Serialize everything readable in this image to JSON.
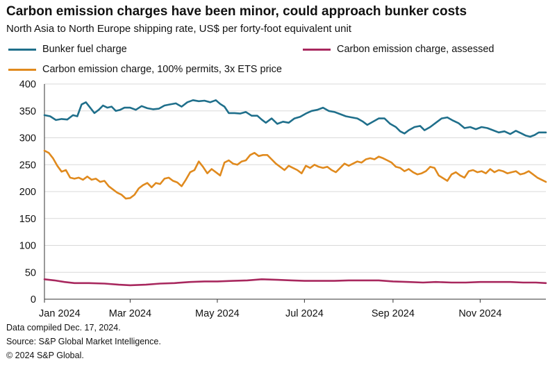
{
  "header": {
    "title": "Carbon emission charges have been minor, could approach bunker costs",
    "subtitle": "North Asia to North Europe shipping rate, US$ per forty-foot equivalent unit"
  },
  "footer": {
    "line1": "Data compiled Dec. 17, 2024.",
    "line2": "Source: S&P Global Market Intelligence.",
    "line3": "© 2024 S&P Global."
  },
  "chart_data": {
    "type": "line",
    "title": "Carbon emission charges have been minor, could approach bunker costs",
    "subtitle": "North Asia to North Europe shipping rate, US$ per forty-foot equivalent unit",
    "xlabel": "",
    "ylabel": "",
    "ylim": [
      0,
      400
    ],
    "yticks": [
      0,
      50,
      100,
      150,
      200,
      250,
      300,
      350,
      400
    ],
    "xlim": [
      "2024-01-01",
      "2024-12-17"
    ],
    "xticks": [
      {
        "date": "2024-01-01",
        "label": "Jan 2024"
      },
      {
        "date": "2024-03-01",
        "label": "Mar 2024"
      },
      {
        "date": "2024-05-01",
        "label": "May 2024"
      },
      {
        "date": "2024-07-01",
        "label": "Jul 2024"
      },
      {
        "date": "2024-09-01",
        "label": "Sep 2024"
      },
      {
        "date": "2024-11-01",
        "label": "Nov 2024"
      }
    ],
    "grid": "horizontal",
    "legend_position": "top",
    "series": [
      {
        "name": "Bunker fuel charge",
        "color": "#1f6f8b",
        "points": [
          [
            "2024-01-01",
            342
          ],
          [
            "2024-01-05",
            340
          ],
          [
            "2024-01-09",
            333
          ],
          [
            "2024-01-13",
            335
          ],
          [
            "2024-01-17",
            334
          ],
          [
            "2024-01-21",
            342
          ],
          [
            "2024-01-24",
            340
          ],
          [
            "2024-01-27",
            362
          ],
          [
            "2024-01-30",
            366
          ],
          [
            "2024-02-02",
            356
          ],
          [
            "2024-02-05",
            346
          ],
          [
            "2024-02-08",
            352
          ],
          [
            "2024-02-11",
            360
          ],
          [
            "2024-02-14",
            356
          ],
          [
            "2024-02-17",
            358
          ],
          [
            "2024-02-20",
            350
          ],
          [
            "2024-02-23",
            352
          ],
          [
            "2024-02-26",
            356
          ],
          [
            "2024-03-01",
            356
          ],
          [
            "2024-03-05",
            352
          ],
          [
            "2024-03-09",
            359
          ],
          [
            "2024-03-13",
            355
          ],
          [
            "2024-03-17",
            353
          ],
          [
            "2024-03-21",
            354
          ],
          [
            "2024-03-25",
            360
          ],
          [
            "2024-03-29",
            362
          ],
          [
            "2024-04-02",
            364
          ],
          [
            "2024-04-06",
            358
          ],
          [
            "2024-04-10",
            366
          ],
          [
            "2024-04-14",
            370
          ],
          [
            "2024-04-18",
            368
          ],
          [
            "2024-04-22",
            369
          ],
          [
            "2024-04-26",
            366
          ],
          [
            "2024-04-30",
            370
          ],
          [
            "2024-05-03",
            363
          ],
          [
            "2024-05-06",
            358
          ],
          [
            "2024-05-09",
            346
          ],
          [
            "2024-05-13",
            346
          ],
          [
            "2024-05-17",
            345
          ],
          [
            "2024-05-21",
            348
          ],
          [
            "2024-05-25",
            341
          ],
          [
            "2024-05-29",
            341
          ],
          [
            "2024-06-01",
            334
          ],
          [
            "2024-06-04",
            328
          ],
          [
            "2024-06-08",
            336
          ],
          [
            "2024-06-12",
            326
          ],
          [
            "2024-06-16",
            330
          ],
          [
            "2024-06-20",
            328
          ],
          [
            "2024-06-24",
            336
          ],
          [
            "2024-06-28",
            339
          ],
          [
            "2024-07-02",
            345
          ],
          [
            "2024-07-06",
            350
          ],
          [
            "2024-07-10",
            352
          ],
          [
            "2024-07-14",
            356
          ],
          [
            "2024-07-18",
            350
          ],
          [
            "2024-07-22",
            348
          ],
          [
            "2024-07-26",
            344
          ],
          [
            "2024-07-30",
            340
          ],
          [
            "2024-08-03",
            338
          ],
          [
            "2024-08-07",
            336
          ],
          [
            "2024-08-11",
            330
          ],
          [
            "2024-08-14",
            324
          ],
          [
            "2024-08-18",
            330
          ],
          [
            "2024-08-22",
            336
          ],
          [
            "2024-08-26",
            336
          ],
          [
            "2024-08-30",
            326
          ],
          [
            "2024-09-03",
            320
          ],
          [
            "2024-09-06",
            312
          ],
          [
            "2024-09-09",
            308
          ],
          [
            "2024-09-12",
            314
          ],
          [
            "2024-09-16",
            320
          ],
          [
            "2024-09-20",
            322
          ],
          [
            "2024-09-23",
            314
          ],
          [
            "2024-09-27",
            320
          ],
          [
            "2024-10-01",
            328
          ],
          [
            "2024-10-05",
            336
          ],
          [
            "2024-10-09",
            338
          ],
          [
            "2024-10-13",
            332
          ],
          [
            "2024-10-17",
            327
          ],
          [
            "2024-10-21",
            318
          ],
          [
            "2024-10-25",
            320
          ],
          [
            "2024-10-29",
            316
          ],
          [
            "2024-11-02",
            320
          ],
          [
            "2024-11-06",
            318
          ],
          [
            "2024-11-10",
            314
          ],
          [
            "2024-11-14",
            310
          ],
          [
            "2024-11-18",
            312
          ],
          [
            "2024-11-22",
            307
          ],
          [
            "2024-11-26",
            313
          ],
          [
            "2024-11-30",
            308
          ],
          [
            "2024-12-03",
            304
          ],
          [
            "2024-12-06",
            302
          ],
          [
            "2024-12-09",
            305
          ],
          [
            "2024-12-12",
            310
          ],
          [
            "2024-12-17",
            310
          ]
        ]
      },
      {
        "name": "Carbon emission charge, assessed",
        "color": "#a8285e",
        "points": [
          [
            "2024-01-01",
            37
          ],
          [
            "2024-01-08",
            35
          ],
          [
            "2024-01-15",
            32
          ],
          [
            "2024-01-22",
            30
          ],
          [
            "2024-02-01",
            30
          ],
          [
            "2024-02-12",
            29
          ],
          [
            "2024-02-22",
            27
          ],
          [
            "2024-03-01",
            26
          ],
          [
            "2024-03-12",
            27
          ],
          [
            "2024-03-22",
            29
          ],
          [
            "2024-04-01",
            30
          ],
          [
            "2024-04-12",
            32
          ],
          [
            "2024-04-22",
            33
          ],
          [
            "2024-05-01",
            33
          ],
          [
            "2024-05-12",
            34
          ],
          [
            "2024-05-22",
            35
          ],
          [
            "2024-06-01",
            37
          ],
          [
            "2024-06-12",
            36
          ],
          [
            "2024-06-22",
            35
          ],
          [
            "2024-07-01",
            34
          ],
          [
            "2024-07-12",
            34
          ],
          [
            "2024-07-22",
            34
          ],
          [
            "2024-08-01",
            35
          ],
          [
            "2024-08-12",
            35
          ],
          [
            "2024-08-22",
            35
          ],
          [
            "2024-09-01",
            33
          ],
          [
            "2024-09-12",
            32
          ],
          [
            "2024-09-22",
            31
          ],
          [
            "2024-10-01",
            32
          ],
          [
            "2024-10-12",
            31
          ],
          [
            "2024-10-22",
            31
          ],
          [
            "2024-11-01",
            32
          ],
          [
            "2024-11-12",
            32
          ],
          [
            "2024-11-22",
            32
          ],
          [
            "2024-12-01",
            31
          ],
          [
            "2024-12-10",
            31
          ],
          [
            "2024-12-17",
            30
          ]
        ]
      },
      {
        "name": "Carbon emission charge, 100% permits, 3x ETS price",
        "color": "#e08a1e",
        "points": [
          [
            "2024-01-01",
            276
          ],
          [
            "2024-01-04",
            272
          ],
          [
            "2024-01-07",
            262
          ],
          [
            "2024-01-10",
            248
          ],
          [
            "2024-01-13",
            237
          ],
          [
            "2024-01-16",
            240
          ],
          [
            "2024-01-19",
            226
          ],
          [
            "2024-01-22",
            224
          ],
          [
            "2024-01-25",
            226
          ],
          [
            "2024-01-28",
            222
          ],
          [
            "2024-01-31",
            228
          ],
          [
            "2024-02-03",
            222
          ],
          [
            "2024-02-06",
            224
          ],
          [
            "2024-02-09",
            218
          ],
          [
            "2024-02-12",
            220
          ],
          [
            "2024-02-15",
            210
          ],
          [
            "2024-02-18",
            204
          ],
          [
            "2024-02-21",
            198
          ],
          [
            "2024-02-24",
            194
          ],
          [
            "2024-02-27",
            187
          ],
          [
            "2024-03-01",
            188
          ],
          [
            "2024-03-04",
            194
          ],
          [
            "2024-03-07",
            206
          ],
          [
            "2024-03-10",
            212
          ],
          [
            "2024-03-13",
            216
          ],
          [
            "2024-03-16",
            208
          ],
          [
            "2024-03-19",
            216
          ],
          [
            "2024-03-22",
            214
          ],
          [
            "2024-03-25",
            224
          ],
          [
            "2024-03-28",
            226
          ],
          [
            "2024-03-31",
            220
          ],
          [
            "2024-04-03",
            217
          ],
          [
            "2024-04-06",
            210
          ],
          [
            "2024-04-09",
            222
          ],
          [
            "2024-04-12",
            236
          ],
          [
            "2024-04-15",
            240
          ],
          [
            "2024-04-18",
            256
          ],
          [
            "2024-04-21",
            246
          ],
          [
            "2024-04-24",
            234
          ],
          [
            "2024-04-27",
            242
          ],
          [
            "2024-04-30",
            236
          ],
          [
            "2024-05-03",
            230
          ],
          [
            "2024-05-06",
            254
          ],
          [
            "2024-05-09",
            258
          ],
          [
            "2024-05-12",
            252
          ],
          [
            "2024-05-15",
            250
          ],
          [
            "2024-05-18",
            256
          ],
          [
            "2024-05-21",
            258
          ],
          [
            "2024-05-24",
            268
          ],
          [
            "2024-05-27",
            272
          ],
          [
            "2024-05-30",
            266
          ],
          [
            "2024-06-02",
            268
          ],
          [
            "2024-06-05",
            268
          ],
          [
            "2024-06-08",
            260
          ],
          [
            "2024-06-11",
            252
          ],
          [
            "2024-06-14",
            246
          ],
          [
            "2024-06-17",
            240
          ],
          [
            "2024-06-20",
            248
          ],
          [
            "2024-06-23",
            244
          ],
          [
            "2024-06-26",
            240
          ],
          [
            "2024-06-29",
            234
          ],
          [
            "2024-07-02",
            248
          ],
          [
            "2024-07-05",
            244
          ],
          [
            "2024-07-08",
            250
          ],
          [
            "2024-07-11",
            246
          ],
          [
            "2024-07-14",
            244
          ],
          [
            "2024-07-17",
            246
          ],
          [
            "2024-07-20",
            240
          ],
          [
            "2024-07-23",
            236
          ],
          [
            "2024-07-26",
            244
          ],
          [
            "2024-07-29",
            252
          ],
          [
            "2024-08-01",
            248
          ],
          [
            "2024-08-04",
            252
          ],
          [
            "2024-08-07",
            256
          ],
          [
            "2024-08-10",
            254
          ],
          [
            "2024-08-13",
            260
          ],
          [
            "2024-08-16",
            262
          ],
          [
            "2024-08-19",
            260
          ],
          [
            "2024-08-22",
            265
          ],
          [
            "2024-08-25",
            262
          ],
          [
            "2024-08-28",
            258
          ],
          [
            "2024-08-31",
            254
          ],
          [
            "2024-09-03",
            246
          ],
          [
            "2024-09-06",
            244
          ],
          [
            "2024-09-09",
            238
          ],
          [
            "2024-09-12",
            242
          ],
          [
            "2024-09-15",
            236
          ],
          [
            "2024-09-18",
            232
          ],
          [
            "2024-09-21",
            234
          ],
          [
            "2024-09-24",
            238
          ],
          [
            "2024-09-27",
            246
          ],
          [
            "2024-09-30",
            244
          ],
          [
            "2024-10-03",
            230
          ],
          [
            "2024-10-06",
            225
          ],
          [
            "2024-10-09",
            220
          ],
          [
            "2024-10-12",
            232
          ],
          [
            "2024-10-15",
            236
          ],
          [
            "2024-10-18",
            230
          ],
          [
            "2024-10-21",
            226
          ],
          [
            "2024-10-24",
            238
          ],
          [
            "2024-10-27",
            240
          ],
          [
            "2024-10-30",
            236
          ],
          [
            "2024-11-02",
            238
          ],
          [
            "2024-11-05",
            234
          ],
          [
            "2024-11-08",
            242
          ],
          [
            "2024-11-11",
            236
          ],
          [
            "2024-11-14",
            240
          ],
          [
            "2024-11-17",
            238
          ],
          [
            "2024-11-20",
            234
          ],
          [
            "2024-11-23",
            236
          ],
          [
            "2024-11-26",
            238
          ],
          [
            "2024-11-29",
            232
          ],
          [
            "2024-12-02",
            234
          ],
          [
            "2024-12-05",
            238
          ],
          [
            "2024-12-08",
            232
          ],
          [
            "2024-12-11",
            226
          ],
          [
            "2024-12-14",
            222
          ],
          [
            "2024-12-17",
            218
          ]
        ]
      }
    ]
  }
}
